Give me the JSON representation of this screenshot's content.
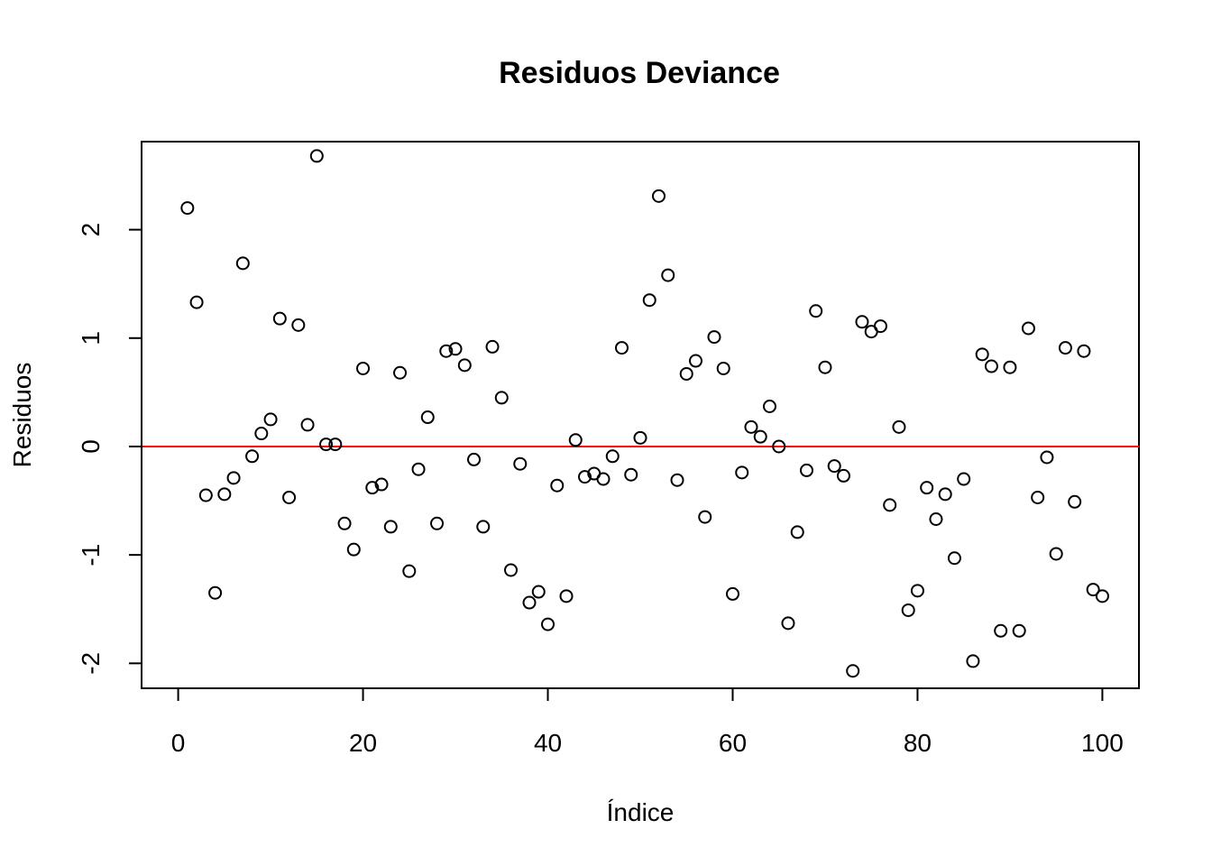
{
  "chart_data": {
    "type": "scatter",
    "title": "Residuos Deviance",
    "xlabel": "Índice",
    "ylabel": "Residuos",
    "xlim": [
      -3.96,
      103.96
    ],
    "ylim": [
      -2.2302,
      2.8122
    ],
    "x_ticks": [
      0,
      20,
      40,
      60,
      80,
      100
    ],
    "y_ticks": [
      -2,
      -1,
      0,
      1,
      2
    ],
    "x_tick_labels": [
      "0",
      "20",
      "40",
      "60",
      "80",
      "100"
    ],
    "y_tick_labels": [
      "-2",
      "-1",
      "0",
      "1",
      "2"
    ],
    "reference_line": {
      "y": 0,
      "color": "#ff0000"
    },
    "point_style": "open-circle",
    "grid": false,
    "series": [
      {
        "x": [
          1,
          2,
          3,
          4,
          5,
          6,
          7,
          8,
          9,
          10,
          11,
          12,
          13,
          14,
          15,
          16,
          17,
          18,
          19,
          20,
          21,
          22,
          23,
          24,
          25,
          26,
          27,
          28,
          29,
          30,
          31,
          32,
          33,
          34,
          35,
          36,
          37,
          38,
          39,
          40,
          41,
          42,
          43,
          44,
          45,
          46,
          47,
          48,
          49,
          50,
          51,
          52,
          53,
          54,
          55,
          56,
          57,
          58,
          59,
          60,
          61,
          62,
          63,
          64,
          65,
          66,
          67,
          68,
          69,
          70,
          71,
          72,
          73,
          74,
          75,
          76,
          77,
          78,
          79,
          80,
          81,
          82,
          83,
          84,
          85,
          86,
          87,
          88,
          89,
          90,
          91,
          92,
          93,
          94,
          95,
          96,
          97,
          98,
          99,
          100
        ],
        "y": [
          2.2,
          1.33,
          -0.45,
          -1.35,
          -0.44,
          -0.29,
          1.69,
          -0.09,
          0.12,
          0.25,
          1.18,
          -0.47,
          1.12,
          0.2,
          2.68,
          0.02,
          0.02,
          -0.71,
          -0.95,
          0.72,
          -0.38,
          -0.35,
          -0.74,
          0.68,
          -1.15,
          -0.21,
          0.27,
          -0.71,
          0.88,
          0.9,
          0.75,
          -0.12,
          -0.74,
          0.92,
          0.45,
          -1.14,
          -0.16,
          -1.44,
          -1.34,
          -1.64,
          -0.36,
          -1.38,
          0.06,
          -0.28,
          -0.25,
          -0.3,
          -0.09,
          0.91,
          -0.26,
          0.08,
          1.35,
          2.31,
          1.58,
          -0.31,
          0.67,
          0.79,
          -0.65,
          1.01,
          0.72,
          -1.36,
          -0.24,
          0.18,
          0.09,
          0.37,
          0.0,
          -1.63,
          -0.79,
          -0.22,
          1.25,
          0.73,
          -0.18,
          -0.27,
          -2.07,
          1.15,
          1.06,
          1.11,
          -0.54,
          0.18,
          -1.51,
          -1.33,
          -0.38,
          -0.67,
          -0.44,
          -1.03,
          -0.3,
          -1.98,
          0.85,
          0.74,
          -1.7,
          0.73,
          -1.7,
          1.09,
          -0.47,
          -0.1,
          -0.99,
          0.91,
          -0.51,
          0.88,
          -1.32,
          -1.38
        ]
      }
    ]
  }
}
